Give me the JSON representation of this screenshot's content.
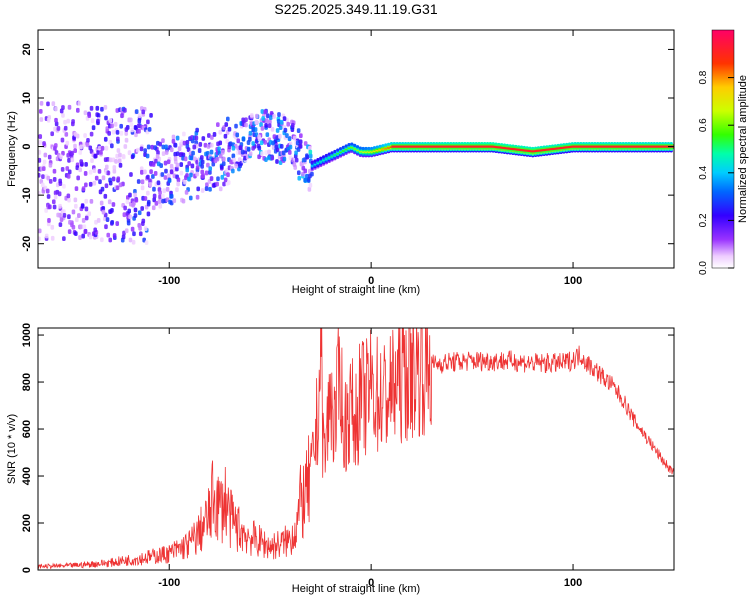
{
  "title": "S225.2025.349.11.19.G31",
  "chart_data": [
    {
      "type": "heatmap",
      "name": "spectrogram",
      "xlabel": "Height of straight line (km)",
      "ylabel": "Frequency (Hz)",
      "xlim": [
        -165,
        150
      ],
      "ylim": [
        -25,
        24
      ],
      "xticks": [
        -100,
        0,
        100
      ],
      "xtick_labels": [
        "-100",
        "0",
        "100"
      ],
      "yticks": [
        -20,
        -10,
        0,
        10,
        20
      ],
      "ytick_labels": [
        "-20",
        "-10",
        "0",
        "10",
        "20"
      ],
      "colorbar": {
        "label": "Normalized spectral amplitude",
        "range": [
          0,
          1
        ],
        "ticks": [
          0.0,
          0.2,
          0.4,
          0.6,
          0.8
        ],
        "tick_labels": [
          "0.0",
          "0.2",
          "0.4",
          "0.6",
          "0.8"
        ]
      },
      "ridge": {
        "x": [
          -165,
          -140,
          -110,
          -90,
          -70,
          -60,
          -50,
          -40,
          -33,
          -30,
          -25,
          -20,
          -15,
          -10,
          -5,
          0,
          10,
          30,
          60,
          80,
          100,
          120,
          150
        ],
        "freq": [
          -5,
          -5,
          -6,
          -4,
          -1,
          3,
          2,
          1,
          -4,
          -4,
          -3,
          -2,
          -1,
          0,
          -1,
          -1,
          0,
          0,
          0,
          -1,
          0,
          0,
          0
        ],
        "amplitude": [
          0.15,
          0.2,
          0.28,
          0.3,
          0.32,
          0.33,
          0.34,
          0.3,
          0.35,
          0.4,
          0.45,
          0.5,
          0.55,
          0.6,
          0.65,
          0.7,
          0.85,
          0.9,
          0.95,
          0.92,
          0.9,
          0.9,
          0.88
        ]
      }
    },
    {
      "type": "line",
      "name": "snr",
      "xlabel": "Height of straight line (km)",
      "ylabel": "SNR (10 * v/v)",
      "xlim": [
        -165,
        150
      ],
      "ylim": [
        0,
        1030
      ],
      "xticks": [
        -100,
        0,
        100
      ],
      "xtick_labels": [
        "-100",
        "0",
        "100"
      ],
      "yticks": [
        0,
        200,
        400,
        600,
        800,
        1000
      ],
      "ytick_labels": [
        "0",
        "200",
        "400",
        "600",
        "800",
        "1000"
      ],
      "series": [
        {
          "name": "SNR",
          "color": "#ee3333",
          "x": [
            -165,
            -150,
            -130,
            -110,
            -100,
            -90,
            -85,
            -80,
            -78,
            -75,
            -72,
            -70,
            -65,
            -60,
            -55,
            -50,
            -45,
            -40,
            -37,
            -35,
            -32,
            -30,
            -28,
            -26,
            -25,
            -24,
            -23,
            -22,
            -20,
            -18,
            -15,
            -14,
            -12,
            -10,
            -8,
            -5,
            -3,
            0,
            5,
            10,
            15,
            20,
            25,
            30,
            35,
            40,
            50,
            60,
            70,
            80,
            90,
            95,
            100,
            104,
            105,
            107,
            110,
            115,
            120,
            125,
            130,
            135,
            140,
            145,
            150
          ],
          "y": [
            15,
            18,
            30,
            55,
            70,
            110,
            160,
            230,
            320,
            260,
            300,
            220,
            170,
            140,
            120,
            100,
            110,
            130,
            190,
            280,
            320,
            400,
            520,
            700,
            1000,
            600,
            480,
            580,
            750,
            600,
            900,
            560,
            650,
            700,
            620,
            750,
            720,
            780,
            730,
            760,
            820,
            850,
            865,
            875,
            880,
            885,
            890,
            890,
            890,
            880,
            880,
            880,
            895,
            920,
            900,
            880,
            860,
            820,
            780,
            720,
            640,
            580,
            520,
            460,
            410
          ]
        }
      ]
    }
  ]
}
